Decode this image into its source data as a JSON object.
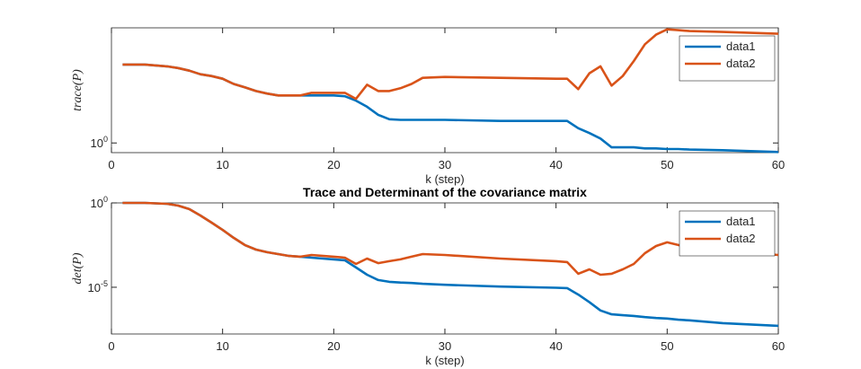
{
  "chart_data": [
    {
      "type": "line",
      "log_y": true,
      "legend": "northeast",
      "box": true,
      "xlabel": "k (step)",
      "ylabel": "trace(P)",
      "xlim": [
        0,
        60
      ],
      "xticks": [
        0,
        10,
        20,
        30,
        40,
        50,
        60
      ],
      "ylim": [
        0.83,
        9.2
      ],
      "yticks": [
        {
          "value": 1,
          "label": "10^0"
        }
      ],
      "x": [
        1,
        3,
        5,
        6,
        7,
        8,
        9,
        10,
        11,
        12,
        13,
        14,
        15,
        16,
        17,
        18,
        20,
        21,
        22,
        23,
        24,
        25,
        26,
        27,
        28,
        30,
        35,
        40,
        41,
        42,
        43,
        44,
        45,
        46,
        47,
        48,
        49,
        50,
        51,
        52,
        55,
        60
      ],
      "series": [
        {
          "name": "data1",
          "color": "#0072BD",
          "values": [
            4.53,
            4.53,
            4.38,
            4.24,
            4.03,
            3.76,
            3.63,
            3.45,
            3.12,
            2.92,
            2.72,
            2.59,
            2.5,
            2.5,
            2.5,
            2.5,
            2.5,
            2.46,
            2.26,
            2.01,
            1.72,
            1.58,
            1.56,
            1.56,
            1.56,
            1.56,
            1.53,
            1.53,
            1.53,
            1.33,
            1.21,
            1.09,
            0.92,
            0.92,
            0.92,
            0.9,
            0.9,
            0.89,
            0.89,
            0.88,
            0.87,
            0.84
          ]
        },
        {
          "name": "data2",
          "color": "#D95319",
          "values": [
            4.53,
            4.53,
            4.38,
            4.24,
            4.03,
            3.76,
            3.63,
            3.45,
            3.12,
            2.92,
            2.72,
            2.59,
            2.5,
            2.5,
            2.5,
            2.63,
            2.63,
            2.63,
            2.34,
            3.07,
            2.72,
            2.72,
            2.87,
            3.12,
            3.51,
            3.57,
            3.51,
            3.45,
            3.45,
            2.82,
            3.83,
            4.38,
            3.02,
            3.63,
            4.85,
            6.7,
            8.07,
            8.93,
            8.79,
            8.65,
            8.49,
            8.21
          ]
        }
      ]
    },
    {
      "type": "line",
      "log_y": true,
      "legend": "northeast",
      "box": true,
      "title": "Trace and Determinant of the covariance matrix",
      "xlabel": "k (step)",
      "ylabel": "det(P)",
      "xlim": [
        0,
        60
      ],
      "xticks": [
        0,
        10,
        20,
        30,
        40,
        50,
        60
      ],
      "ylim": [
        1.7e-08,
        1
      ],
      "yticks": [
        {
          "value": 1,
          "label": "10^0"
        },
        {
          "value": 1e-05,
          "label": "10^-5"
        }
      ],
      "x": [
        1,
        3,
        5,
        6,
        7,
        8,
        9,
        10,
        11,
        12,
        13,
        14,
        15,
        16,
        17,
        18,
        20,
        21,
        22,
        23,
        24,
        25,
        26,
        27,
        28,
        30,
        35,
        40,
        41,
        42,
        43,
        44,
        45,
        46,
        47,
        48,
        49,
        50,
        51,
        52,
        55,
        60
      ],
      "series": [
        {
          "name": "data1",
          "color": "#0072BD",
          "values": [
            1,
            1,
            0.89,
            0.69,
            0.43,
            0.18,
            0.068,
            0.025,
            0.0085,
            0.0032,
            0.0017,
            0.0012,
            0.00093,
            0.00072,
            0.00065,
            0.00057,
            0.00045,
            0.0004,
            0.00015,
            5.5e-05,
            2.7e-05,
            2.1e-05,
            1.9e-05,
            1.8e-05,
            1.6e-05,
            1.4e-05,
            1.1e-05,
            9.3e-06,
            8.9e-06,
            3.7e-06,
            1.3e-06,
            4.2e-07,
            2.5e-07,
            2.2e-07,
            2e-07,
            1.7e-07,
            1.5e-07,
            1.4e-07,
            1.2e-07,
            1.1e-07,
            7.5e-08,
            5.2e-08
          ]
        },
        {
          "name": "data2",
          "color": "#D95319",
          "values": [
            1,
            1,
            0.89,
            0.69,
            0.43,
            0.18,
            0.068,
            0.025,
            0.0085,
            0.0032,
            0.0017,
            0.0012,
            0.00093,
            0.00072,
            0.00065,
            0.00082,
            0.00065,
            0.00057,
            0.00024,
            0.0005,
            0.00027,
            0.00035,
            0.00045,
            0.00065,
            0.00093,
            0.00082,
            0.0005,
            0.00035,
            0.00031,
            6.3e-05,
            0.000115,
            5.5e-05,
            6.3e-05,
            0.000115,
            0.00024,
            0.00105,
            0.0028,
            0.0046,
            0.0032,
            0.0022,
            0.0015,
            0.00082
          ]
        }
      ]
    }
  ]
}
